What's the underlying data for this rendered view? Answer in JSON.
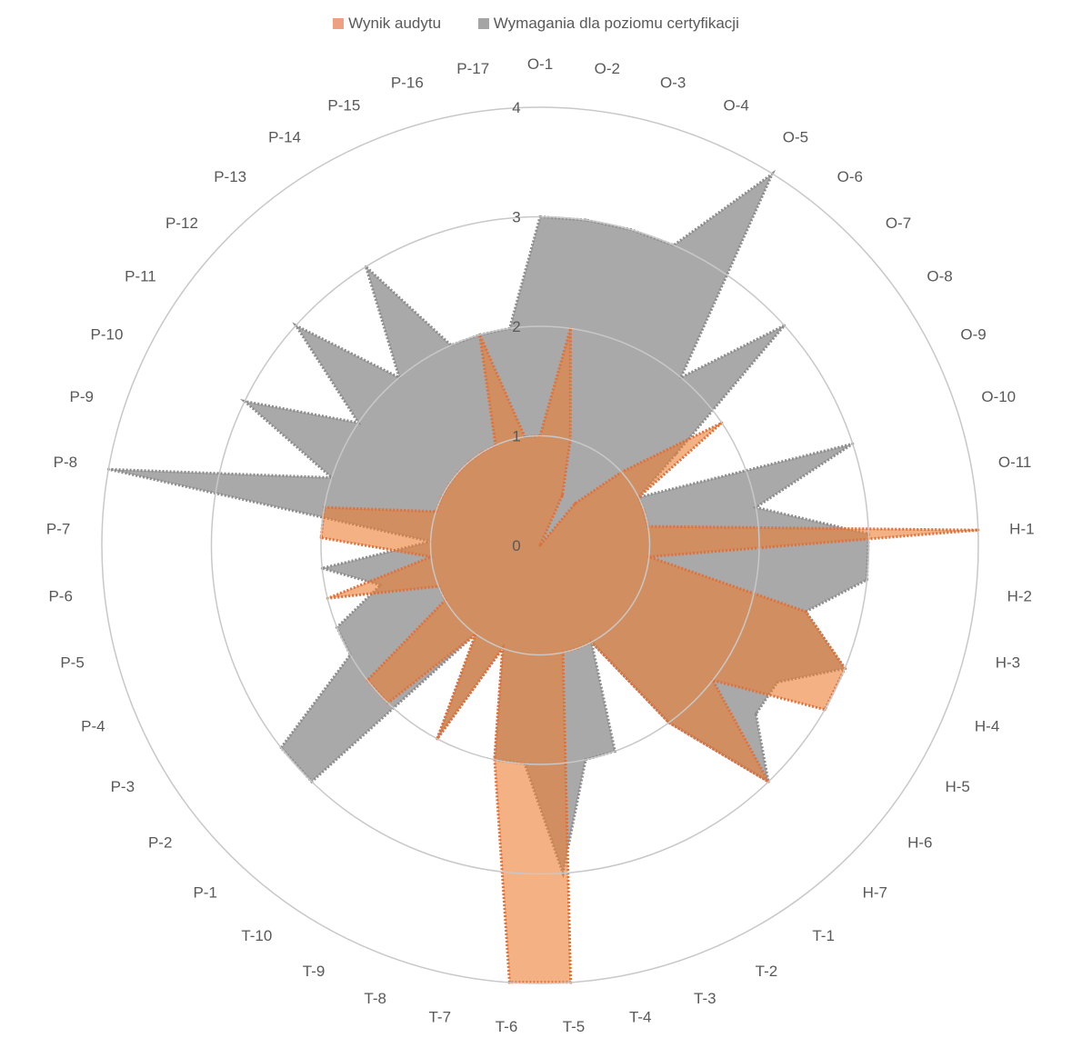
{
  "chart_data": {
    "type": "radar",
    "title": "",
    "legend_position": "top",
    "rlim": [
      0,
      4
    ],
    "r_ticks": [
      "0",
      "1",
      "2",
      "3",
      "4"
    ],
    "grid": true,
    "categories": [
      "O-1",
      "O-2",
      "O-3",
      "O-4",
      "O-5",
      "O-6",
      "O-7",
      "O-8",
      "O-9",
      "O-10",
      "O-11",
      "H-1",
      "H-2",
      "H-3",
      "H-4",
      "H-5",
      "H-6",
      "H-7",
      "T-1",
      "T-2",
      "T-3",
      "T-4",
      "T-5",
      "T-6",
      "T-7",
      "T-8",
      "T-9",
      "T-10",
      "P-1",
      "P-2",
      "P-3",
      "P-4",
      "P-5",
      "P-6",
      "P-7",
      "P-8",
      "P-9",
      "P-10",
      "P-11",
      "P-12",
      "P-13",
      "P-14",
      "P-15",
      "P-16",
      "P-17"
    ],
    "series": [
      {
        "name": "Wymagania dla poziomu certyfikacji",
        "color": "#a5a5a5",
        "values": [
          3,
          3,
          3,
          3,
          4,
          2,
          3,
          1.5,
          1,
          3,
          2,
          3,
          3,
          2.5,
          3,
          2.5,
          2.5,
          3,
          2,
          1,
          2,
          2,
          3,
          2,
          2,
          1,
          2,
          1,
          3,
          3,
          2,
          2,
          1.5,
          2,
          1,
          4,
          2,
          3,
          2,
          3,
          2,
          3,
          2,
          2,
          2
        ]
      },
      {
        "name": "Wynik audytu",
        "color": "#ed7d31",
        "values": [
          1,
          2,
          1,
          0.5,
          0,
          0.5,
          1,
          2,
          1,
          1,
          1,
          4,
          1,
          2.5,
          3,
          3,
          2,
          3,
          2,
          1,
          1,
          1,
          4,
          4,
          2,
          1,
          2,
          1,
          2,
          2,
          1,
          1,
          2,
          1,
          2,
          2,
          1,
          1,
          1,
          1,
          1,
          1,
          1,
          2,
          1
        ]
      }
    ]
  }
}
